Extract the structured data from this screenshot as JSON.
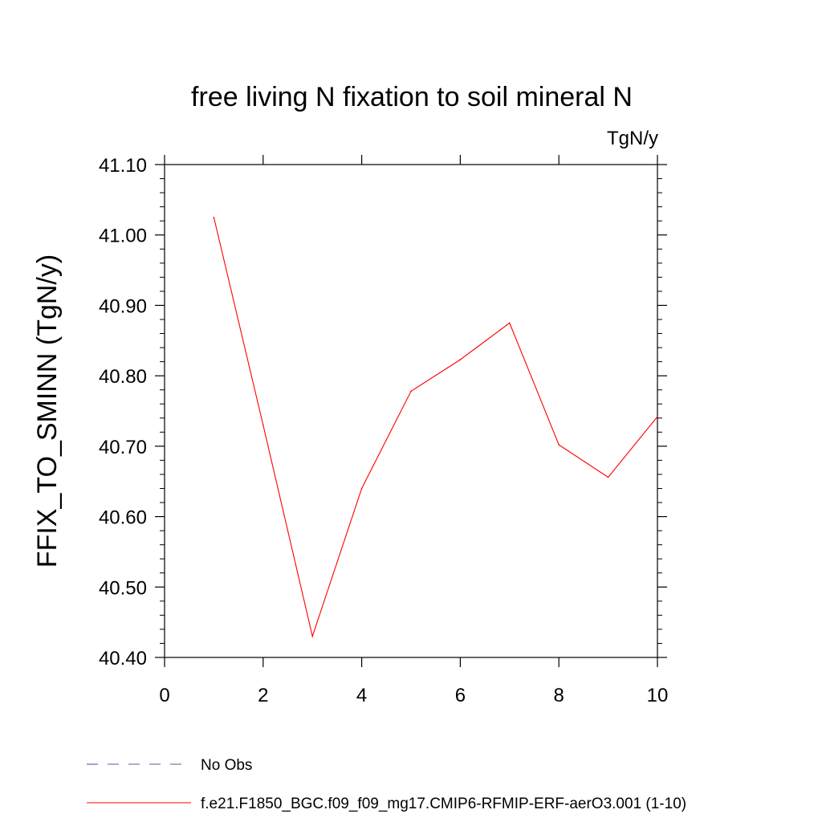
{
  "chart_data": {
    "type": "line",
    "title": "free living N fixation to soil mineral N",
    "units_label": "TgN/y",
    "ylabel": "FFIX_TO_SMINN  (TgN/y)",
    "xlabel": "",
    "xlim": [
      0,
      10
    ],
    "ylim": [
      40.4,
      41.1
    ],
    "x_ticks": [
      "0",
      "2",
      "4",
      "6",
      "8",
      "10"
    ],
    "y_ticks": [
      "40.40",
      "40.50",
      "40.60",
      "40.70",
      "40.80",
      "40.90",
      "41.00",
      "41.10"
    ],
    "grid": false,
    "legend_position": "bottom-left",
    "series": [
      {
        "name": "f.e21.F1850_BGC.f09_f09_mg17.CMIP6-RFMIP-ERF-aerO3.001 (1-10)",
        "color": "#ff0000",
        "style": "solid",
        "x": [
          1,
          2,
          3,
          4,
          5,
          6,
          7,
          8,
          9,
          10
        ],
        "y": [
          41.025,
          40.73,
          40.43,
          40.64,
          40.778,
          40.823,
          40.875,
          40.702,
          40.656,
          40.742
        ]
      }
    ],
    "legend": [
      {
        "label": "No Obs",
        "color": "#5a5aa0",
        "style": "dashed"
      },
      {
        "label": "f.e21.F1850_BGC.f09_f09_mg17.CMIP6-RFMIP-ERF-aerO3.001 (1-10)",
        "color": "#ff0000",
        "style": "solid"
      }
    ]
  }
}
